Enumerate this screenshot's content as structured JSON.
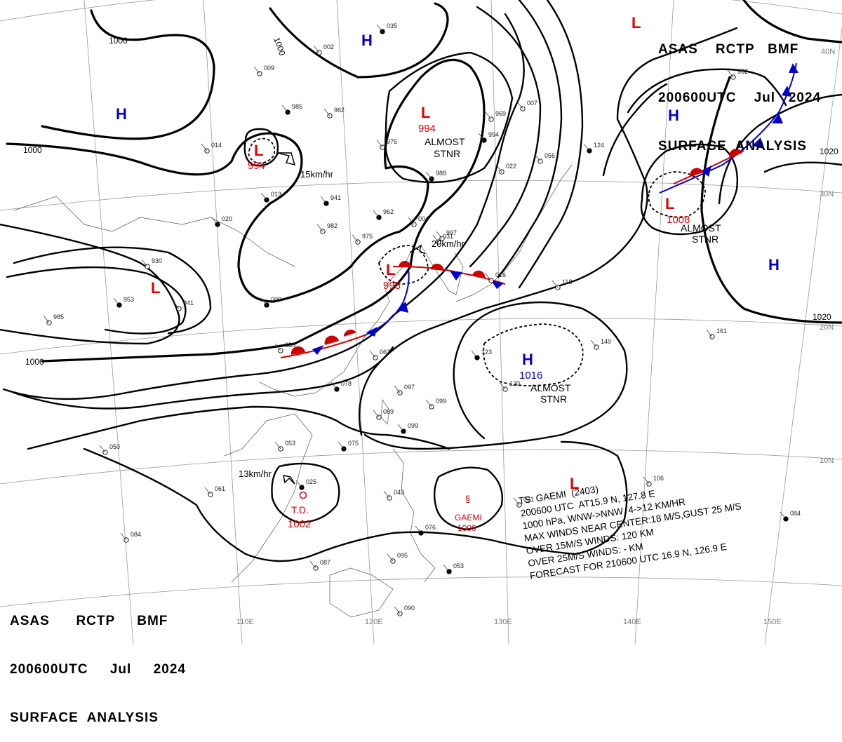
{
  "header_top": {
    "line1": "ASAS    RCTP   BMF",
    "line2": "200600UTC    Jul   2024",
    "line3": "SURFACE  ANALYSIS"
  },
  "header_bottom": {
    "line1": "ASAS      RCTP     BMF",
    "line2": "200600UTC     Jul     2024",
    "line3": "SURFACE  ANALYSIS"
  },
  "colors": {
    "low": "#e00000",
    "high": "#0000d0",
    "isobar": "#000000",
    "grid": "#9a9a9a"
  },
  "isobar_labels": [
    "1000",
    "1000",
    "1000",
    "1000",
    "1020",
    "1020"
  ],
  "latitude_labels": [
    "40N",
    "30N",
    "20N",
    "10N"
  ],
  "longitude_labels": [
    "110E",
    "120E",
    "130E",
    "140E",
    "150E"
  ],
  "pressure_centers": [
    {
      "type": "L",
      "value": "994",
      "note": ""
    },
    {
      "type": "L",
      "value": "994",
      "note": "ALMOST STNR"
    },
    {
      "type": "L",
      "value": "998",
      "note": ""
    },
    {
      "type": "L",
      "value": "1008",
      "note": "ALMOST STNR"
    },
    {
      "type": "L",
      "value": "",
      "note": ""
    },
    {
      "type": "L",
      "value": "",
      "note": ""
    },
    {
      "type": "L",
      "value": "",
      "note": ""
    },
    {
      "type": "H",
      "value": "1016",
      "note": "ALMOST STNR"
    },
    {
      "type": "H",
      "value": "",
      "note": ""
    },
    {
      "type": "H",
      "value": "",
      "note": ""
    },
    {
      "type": "H",
      "value": "",
      "note": ""
    },
    {
      "type": "H",
      "value": "",
      "note": ""
    }
  ],
  "td_label": "T.D.",
  "td_pressure": "1002",
  "typhoon_name": "GAEMI",
  "typhoon_pressure": "1000",
  "motions": [
    "15km/hr",
    "20km/hr",
    "13km/hr"
  ],
  "almost_stnr": [
    "ALMOST",
    "STNR"
  ],
  "typhoon_warning": [
    "TS  GAEMI  (2403)",
    "200600 UTC  AT15.9 N, 127.8 E",
    "1000 hPa, WNW->NNW  4->12 KM/HR",
    "MAX WINDS NEAR CENTER:18 M/S,GUST 25 M/S",
    "OVER 15M/S WINDS: 120 KM",
    "OVER 25M/S WINDS: - KM",
    "FORECAST FOR 210600 UTC 16.9 N, 126.9 E"
  ],
  "station_values": [
    "035",
    "002",
    "009",
    "985",
    "962",
    "975",
    "941",
    "982",
    "975",
    "962",
    "004",
    "031",
    "988",
    "022",
    "969",
    "994",
    "007",
    "056",
    "124",
    "982",
    "930",
    "953",
    "985",
    "941",
    "009",
    "030",
    "063",
    "078",
    "097",
    "099",
    "099",
    "089",
    "061",
    "075",
    "053",
    "043",
    "025",
    "050",
    "084",
    "076",
    "087",
    "095",
    "053",
    "090",
    "106",
    "084",
    "161",
    "149",
    "123",
    "118",
    "016",
    "020",
    "014",
    "120",
    "013",
    "997",
    "021",
    "069"
  ]
}
